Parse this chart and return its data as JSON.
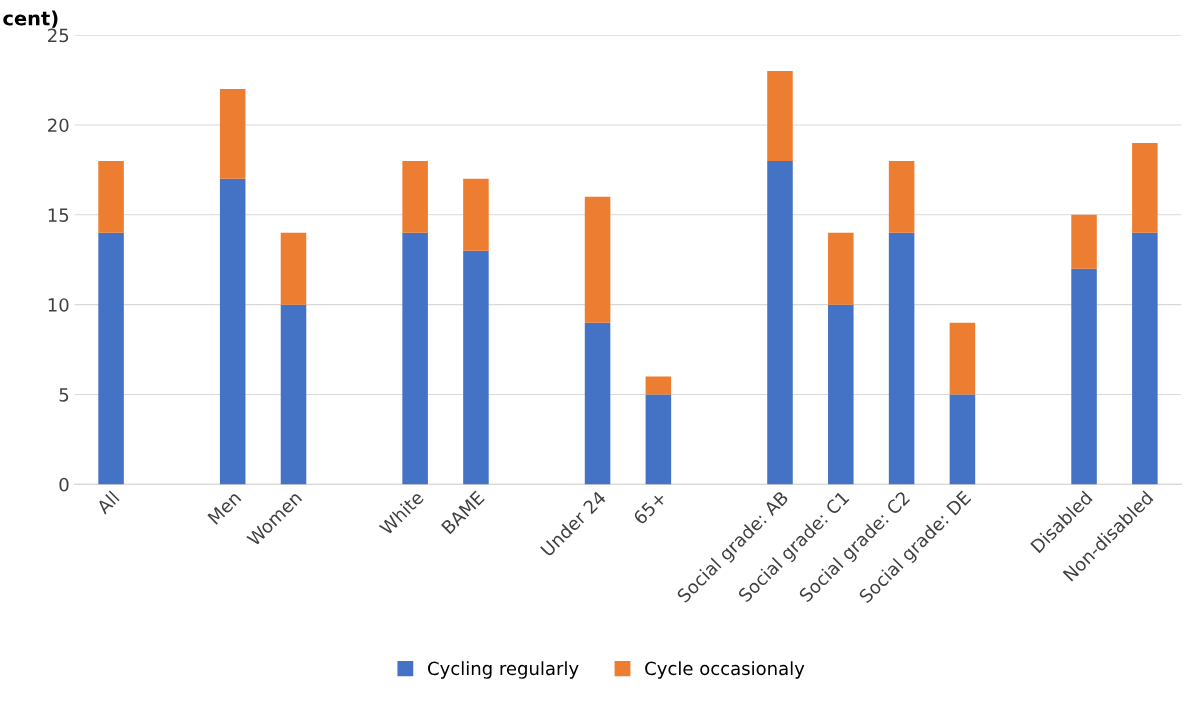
{
  "chart_data": {
    "type": "bar",
    "title": "cent)",
    "stacked": true,
    "grid": "y",
    "legend": "bottom",
    "categories": [
      "All",
      null,
      "Men",
      "Women",
      null,
      "White",
      "BAME",
      null,
      "Under 24",
      "65+",
      null,
      "Social grade: AB",
      "Social grade: C1",
      "Social grade: C2",
      "Social grade: DE",
      null,
      "Disabled",
      "Non-disabled"
    ],
    "series": [
      {
        "name": "Cycling regularly",
        "color": "#4472c4",
        "values": [
          14,
          null,
          17,
          10,
          null,
          14,
          13,
          null,
          9,
          5,
          null,
          18,
          10,
          14,
          5,
          null,
          12,
          14
        ]
      },
      {
        "name": "Cycle occasionaly",
        "color": "#ed7d31",
        "values": [
          4,
          null,
          5,
          4,
          null,
          4,
          4,
          null,
          7,
          1,
          null,
          5,
          4,
          4,
          4,
          null,
          3,
          5
        ]
      }
    ],
    "ylim": [
      0,
      25
    ],
    "yticks": [
      0,
      5,
      10,
      15,
      20,
      25
    ]
  }
}
